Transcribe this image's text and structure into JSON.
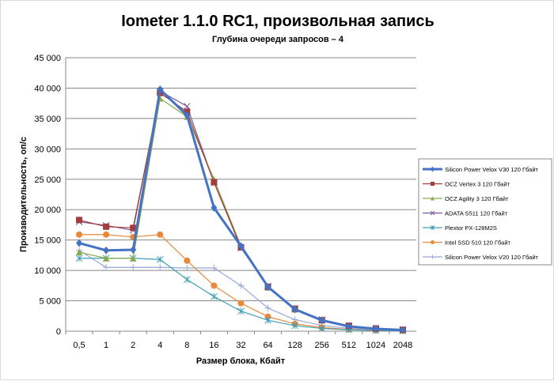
{
  "chart_data": {
    "type": "line",
    "title": "Iometer 1.1.0 RC1, произвольная запись",
    "subtitle": "Глубина очереди запросов – 4",
    "xlabel": "Размер блока, Кбайт",
    "ylabel": "Производительность, оп/с",
    "ylim": [
      0,
      45000
    ],
    "yticks": [
      "0",
      "5 000",
      "10 000",
      "15 000",
      "20 000",
      "25 000",
      "30 000",
      "35 000",
      "40 000",
      "45 000"
    ],
    "categories": [
      "0,5",
      "1",
      "2",
      "4",
      "8",
      "16",
      "32",
      "64",
      "128",
      "256",
      "512",
      "1024",
      "2048"
    ],
    "grid": true,
    "legend": "right",
    "series": [
      {
        "name": "Silicon Power Velox V30 120 Гбайт",
        "color": "#4472c4",
        "marker": "diamond",
        "width": 3,
        "values": [
          14500,
          13300,
          13400,
          39800,
          35500,
          20300,
          14000,
          7300,
          3600,
          1800,
          800,
          400,
          200
        ]
      },
      {
        "name": "OCZ Vertex 3 120 Гбайт",
        "color": "#a33c3a",
        "marker": "square",
        "width": 1.2,
        "values": [
          18300,
          17200,
          17000,
          39200,
          36100,
          24500,
          13800,
          7300,
          3700,
          1800,
          900,
          450,
          230
        ]
      },
      {
        "name": "OCZ Agility 3 120 Гбайт",
        "color": "#8aaa4a",
        "marker": "triangle",
        "width": 1.2,
        "values": [
          13000,
          12000,
          12000,
          38300,
          35300,
          25000,
          14000,
          7200,
          3600,
          1800,
          900,
          450,
          230
        ]
      },
      {
        "name": "ADATA S511 120 Гбайт",
        "color": "#7a5a9c",
        "marker": "x",
        "width": 1.2,
        "values": [
          18000,
          17400,
          16600,
          39500,
          37000,
          24500,
          13700,
          7400,
          3700,
          1900,
          900,
          450,
          230
        ]
      },
      {
        "name": "Plextor PX-128M2S",
        "color": "#3ea0b8",
        "marker": "star",
        "width": 1.2,
        "values": [
          12000,
          12000,
          12000,
          11800,
          8500,
          5700,
          3300,
          1800,
          900,
          450,
          230,
          120,
          60
        ]
      },
      {
        "name": "Intel SSD 510 120 Гбайт",
        "color": "#e8883a",
        "marker": "circle",
        "width": 1.2,
        "values": [
          15900,
          15900,
          15500,
          15900,
          11600,
          7500,
          4600,
          2400,
          1200,
          600,
          300,
          150,
          80
        ]
      },
      {
        "name": "Silicon Power Velox V20 120 Гбайт",
        "color": "#94a8d8",
        "marker": "plus",
        "width": 1.2,
        "values": [
          13300,
          10500,
          10500,
          10500,
          10400,
          10400,
          7500,
          3800,
          1900,
          950,
          480,
          240,
          120
        ]
      }
    ]
  }
}
